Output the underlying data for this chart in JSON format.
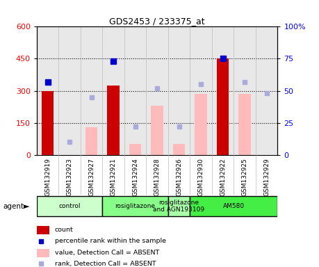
{
  "title": "GDS2453 / 233375_at",
  "samples": [
    "GSM132919",
    "GSM132923",
    "GSM132927",
    "GSM132921",
    "GSM132924",
    "GSM132928",
    "GSM132926",
    "GSM132930",
    "GSM132922",
    "GSM132925",
    "GSM132929"
  ],
  "count_values": [
    300,
    null,
    null,
    325,
    null,
    null,
    null,
    null,
    450,
    null,
    null
  ],
  "percentile_rank": [
    57,
    null,
    null,
    73,
    null,
    null,
    null,
    null,
    75,
    null,
    null
  ],
  "value_absent": [
    null,
    null,
    130,
    null,
    50,
    230,
    50,
    285,
    null,
    285,
    null
  ],
  "rank_absent": [
    null,
    10,
    45,
    null,
    22,
    52,
    22,
    55,
    null,
    57,
    48
  ],
  "ylim_left": [
    0,
    600
  ],
  "ylim_right": [
    0,
    100
  ],
  "yticks_left": [
    0,
    150,
    300,
    450,
    600
  ],
  "yticks_right": [
    0,
    25,
    50,
    75,
    100
  ],
  "agent_groups": [
    {
      "label": "control",
      "start": 0,
      "end": 3,
      "color": "#ccffcc"
    },
    {
      "label": "rosiglitazone",
      "start": 3,
      "end": 6,
      "color": "#88ff88"
    },
    {
      "label": "rosiglitazone\nand AGN193109",
      "start": 6,
      "end": 7,
      "color": "#aaffaa"
    },
    {
      "label": "AM580",
      "start": 7,
      "end": 11,
      "color": "#44ee44"
    }
  ],
  "colors": {
    "count_bar": "#cc0000",
    "percentile_marker": "#0000cc",
    "value_absent_bar": "#ffbbbb",
    "rank_absent_marker": "#aaaadd",
    "bg_plot": "#e8e8e8",
    "bg_fig": "#ffffff",
    "tick_left": "red",
    "tick_right": "blue"
  }
}
